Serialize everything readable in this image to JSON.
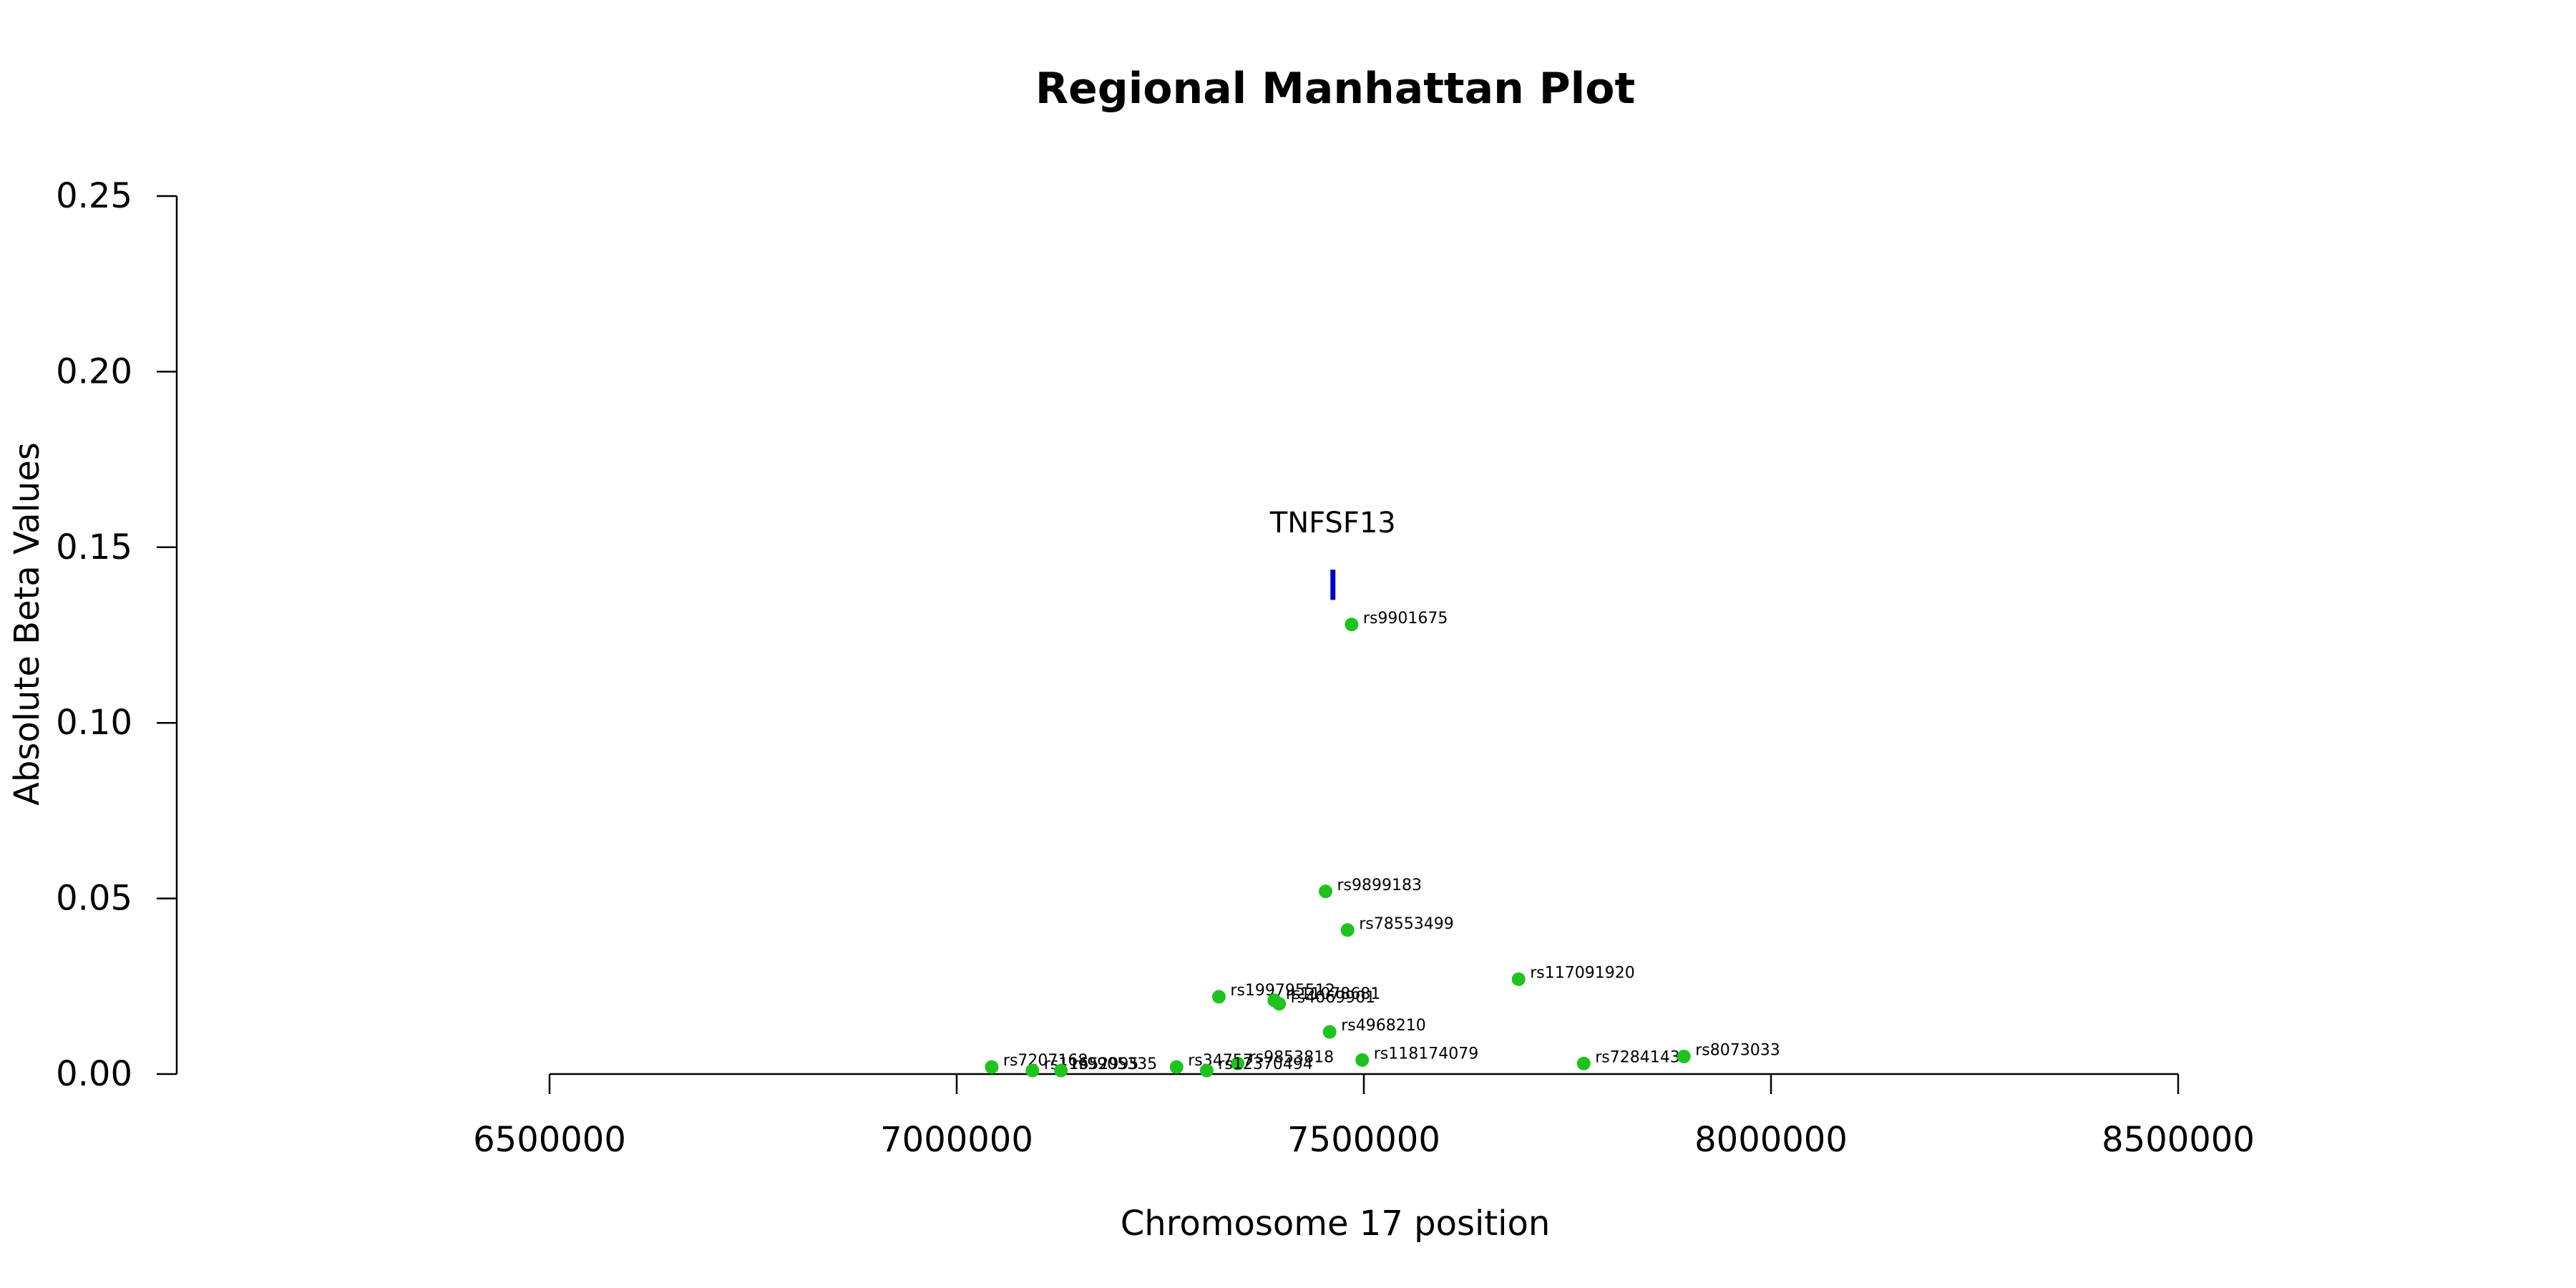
{
  "chart_data": {
    "type": "scatter",
    "title": "Regional Manhattan Plot",
    "xlabel": "Chromosome 17 position",
    "ylabel": "Absolute Beta Values",
    "xlim": [
      6500000,
      8500000
    ],
    "ylim": [
      0,
      0.25
    ],
    "x_ticks": [
      6500000,
      7000000,
      7500000,
      8000000,
      8500000
    ],
    "x_tick_labels": [
      "6500000",
      "7000000",
      "7500000",
      "8000000",
      "8500000"
    ],
    "y_ticks": [
      0.0,
      0.05,
      0.1,
      0.15,
      0.2,
      0.25
    ],
    "y_tick_labels": [
      "0.00",
      "0.05",
      "0.10",
      "0.15",
      "0.20",
      "0.25"
    ],
    "point_color": "#1ec31e",
    "gene_color": "#0000cd",
    "grid": false,
    "points": [
      {
        "label": "rs9901675",
        "x": 7485000,
        "y": 0.128
      },
      {
        "label": "rs9899183",
        "x": 7453000,
        "y": 0.052
      },
      {
        "label": "rs78553499",
        "x": 7480000,
        "y": 0.041
      },
      {
        "label": "rs117091920",
        "x": 7690000,
        "y": 0.027
      },
      {
        "label": "rs199795512",
        "x": 7322000,
        "y": 0.022
      },
      {
        "label": "rs11078681",
        "x": 7390000,
        "y": 0.021
      },
      {
        "label": "rs4069901",
        "x": 7396000,
        "y": 0.02
      },
      {
        "label": "rs4968210",
        "x": 7458000,
        "y": 0.012
      },
      {
        "label": "rs118174079",
        "x": 7498000,
        "y": 0.004
      },
      {
        "label": "rs72841430",
        "x": 7770000,
        "y": 0.003
      },
      {
        "label": "rs8073033",
        "x": 7893000,
        "y": 0.005
      },
      {
        "label": "rs7207168",
        "x": 7043000,
        "y": 0.002
      },
      {
        "label": "rs11652995",
        "x": 7093000,
        "y": 0.001
      },
      {
        "label": "rs9905335",
        "x": 7128000,
        "y": 0.001
      },
      {
        "label": "rs34757",
        "x": 7270000,
        "y": 0.002
      },
      {
        "label": "rs9853818",
        "x": 7345000,
        "y": 0.003
      },
      {
        "label": "rs12370494",
        "x": 7307000,
        "y": 0.001
      }
    ],
    "genes": [
      {
        "name": "TNFSF13",
        "x": 7462000,
        "y_bottom": 0.135,
        "y_top": 0.142
      }
    ]
  }
}
